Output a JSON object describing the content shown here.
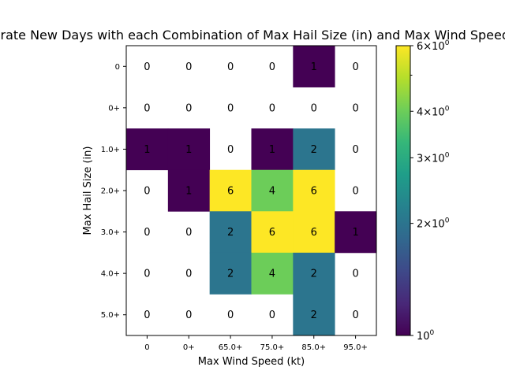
{
  "chart_data": {
    "type": "heatmap",
    "title": "Moderate New Days with each Combination of Max Hail Size (in) and Max Wind Speed (kt)",
    "xlabel": "Max Wind Speed (kt)",
    "ylabel": "Max Hail Size (in)",
    "x_categories": [
      "0",
      "0+",
      "65.0+",
      "75.0+",
      "85.0+",
      "95.0+"
    ],
    "y_categories": [
      "0",
      "0+",
      "1.0+",
      "2.0+",
      "3.0+",
      "4.0+",
      "5.0+"
    ],
    "values": [
      [
        0,
        0,
        0,
        0,
        1,
        0
      ],
      [
        0,
        0,
        0,
        0,
        0,
        0
      ],
      [
        1,
        1,
        0,
        1,
        2,
        0
      ],
      [
        0,
        1,
        6,
        4,
        6,
        0
      ],
      [
        0,
        0,
        2,
        6,
        6,
        1
      ],
      [
        0,
        0,
        2,
        4,
        2,
        0
      ],
      [
        0,
        0,
        0,
        0,
        2,
        0
      ]
    ],
    "colorscale": "viridis",
    "color_scale_type": "log",
    "zero_cells": "blank (white)",
    "color_range": [
      1,
      6
    ],
    "colorbar": {
      "ticks": [
        1,
        2,
        3,
        4,
        6
      ],
      "tick_labels": [
        "10^0",
        "2×10^0",
        "3×10^0",
        "4×10^0",
        "6×10^0"
      ]
    },
    "grid": false
  }
}
